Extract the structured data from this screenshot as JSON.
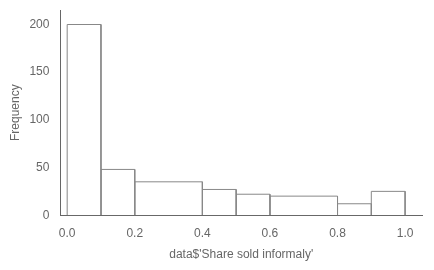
{
  "chart_data": {
    "type": "histogram",
    "bins": [
      0.0,
      0.1,
      0.2,
      0.4,
      0.5,
      0.6,
      0.8,
      0.9,
      1.0
    ],
    "values": [
      200,
      48,
      35,
      27,
      22,
      20,
      12,
      25
    ],
    "xlabel": "data$'Share sold informaly'",
    "ylabel": "Frequency",
    "xlim": [
      -0.02,
      1.05
    ],
    "ylim": [
      0,
      215
    ],
    "xticks": [
      {
        "value": 0.0,
        "label": "0.0"
      },
      0.2,
      0.4,
      0.6,
      0.8,
      {
        "value": 1.0,
        "label": "1.0"
      }
    ],
    "yticks": [
      0,
      50,
      100,
      150,
      200
    ],
    "color": "white",
    "grid": false
  }
}
